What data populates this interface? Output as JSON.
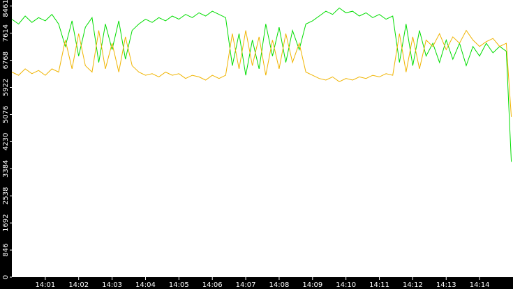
{
  "chart_data": {
    "type": "line",
    "x": [
      0,
      0.2,
      0.4,
      0.6,
      0.8,
      1,
      1.2,
      1.4,
      1.6,
      1.8,
      2,
      2.2,
      2.4,
      2.6,
      2.8,
      3,
      3.2,
      3.4,
      3.6,
      3.8,
      4,
      4.2,
      4.4,
      4.6,
      4.8,
      5,
      5.2,
      5.4,
      5.6,
      5.8,
      6,
      6.2,
      6.4,
      6.6,
      6.8,
      7,
      7.2,
      7.4,
      7.6,
      7.8,
      8,
      8.2,
      8.4,
      8.6,
      8.8,
      9,
      9.2,
      9.4,
      9.6,
      9.8,
      10,
      10.2,
      10.4,
      10.6,
      10.8,
      11,
      11.2,
      11.4,
      11.6,
      11.8,
      12,
      12.2,
      12.4,
      12.6,
      12.8,
      13,
      13.2,
      13.4,
      13.6,
      13.8,
      14,
      14.2,
      14.4,
      14.6,
      14.8,
      14.95
    ],
    "series": [
      {
        "color": "#00dd00",
        "values": [
          8050,
          7900,
          8150,
          7950,
          8100,
          8000,
          8200,
          7900,
          7200,
          8000,
          6900,
          7800,
          8100,
          6700,
          7900,
          7100,
          8000,
          6800,
          7700,
          7900,
          8050,
          7950,
          8100,
          8000,
          8150,
          8050,
          8200,
          8100,
          8250,
          8150,
          8300,
          8200,
          8100,
          6600,
          7600,
          6300,
          7400,
          6500,
          7900,
          6900,
          7800,
          6700,
          7700,
          7100,
          7900,
          8000,
          8150,
          8300,
          8200,
          8400,
          8250,
          8300,
          8150,
          8250,
          8100,
          8200,
          8050,
          8150,
          6700,
          7900,
          6600,
          7700,
          6900,
          7300,
          6700,
          7400,
          6800,
          7300,
          6600,
          7200,
          6900,
          7300,
          7000,
          7200,
          7050,
          3600
        ]
      },
      {
        "color": "#f0b400",
        "values": [
          6400,
          6300,
          6500,
          6350,
          6450,
          6300,
          6500,
          6400,
          7400,
          6500,
          7600,
          6600,
          6400,
          7700,
          6500,
          7300,
          6400,
          7500,
          6600,
          6400,
          6300,
          6350,
          6250,
          6400,
          6300,
          6350,
          6200,
          6300,
          6250,
          6150,
          6300,
          6200,
          6300,
          7600,
          6500,
          7700,
          6600,
          7500,
          6300,
          7400,
          6500,
          7600,
          6700,
          7300,
          6400,
          6300,
          6200,
          6150,
          6250,
          6100,
          6200,
          6150,
          6250,
          6200,
          6300,
          6250,
          6350,
          6300,
          7600,
          6400,
          7500,
          6500,
          7400,
          7200,
          7600,
          7100,
          7500,
          7300,
          7700,
          7400,
          7200,
          7350,
          7450,
          7200,
          7300,
          5000
        ]
      }
    ],
    "xlim": [
      0,
      15
    ],
    "xticks": [
      {
        "value": 1,
        "label": "14:01"
      },
      {
        "value": 2,
        "label": "14:02"
      },
      {
        "value": 3,
        "label": "14:03"
      },
      {
        "value": 4,
        "label": "14:04"
      },
      {
        "value": 5,
        "label": "14:05"
      },
      {
        "value": 6,
        "label": "14:06"
      },
      {
        "value": 7,
        "label": "14:07"
      },
      {
        "value": 8,
        "label": "14:08"
      },
      {
        "value": 9,
        "label": "14:09"
      },
      {
        "value": 10,
        "label": "14:10"
      },
      {
        "value": 11,
        "label": "14:11"
      },
      {
        "value": 12,
        "label": "14:12"
      },
      {
        "value": 13,
        "label": "14:13"
      },
      {
        "value": 14,
        "label": "14:14"
      }
    ],
    "ylim": [
      0,
      8650
    ],
    "yticks": [
      0,
      846,
      1692,
      2538,
      3384,
      4230,
      5076,
      5922,
      6768,
      7614,
      8461
    ]
  }
}
